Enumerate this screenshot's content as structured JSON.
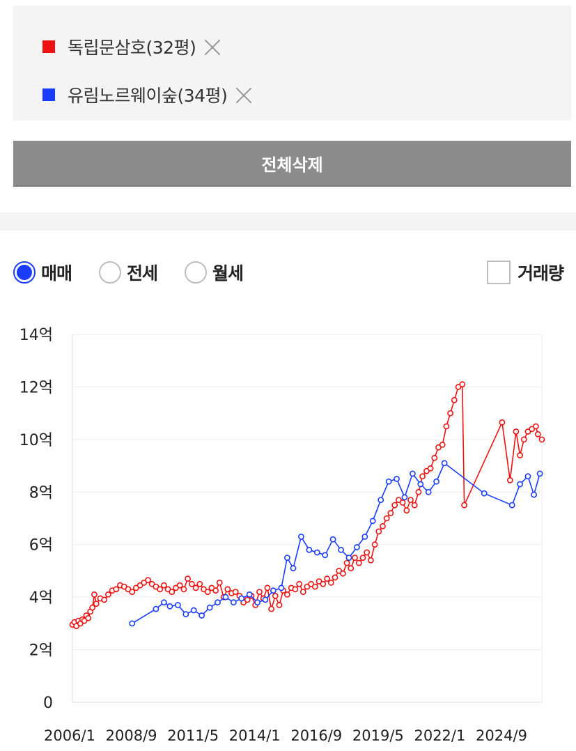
{
  "compare": {
    "items": [
      {
        "label": "독립문삼호(32평)",
        "color": "#ee1111"
      },
      {
        "label": "유림노르웨이숲(34평)",
        "color": "#1a3cff"
      }
    ],
    "delete_all_label": "전체삭제"
  },
  "options": {
    "radios": [
      {
        "label": "매매",
        "checked": true
      },
      {
        "label": "전세",
        "checked": false
      },
      {
        "label": "월세",
        "checked": false
      }
    ],
    "volume_checkbox": {
      "label": "거래량",
      "checked": false
    }
  },
  "chart_data": {
    "type": "line",
    "title": "",
    "xlabel": "",
    "ylabel": "",
    "x_ticks": [
      "2006/1",
      "2008/9",
      "2011/5",
      "2014/1",
      "2016/9",
      "2019/5",
      "2022/1",
      "2024/9"
    ],
    "y_ticks": [
      "0",
      "2억",
      "4억",
      "6억",
      "8억",
      "10억",
      "12억",
      "14억"
    ],
    "xlim": [
      "2006-01",
      "2025-09"
    ],
    "ylim": [
      0,
      14
    ],
    "y_unit": "억",
    "grid": "horizontal",
    "series": [
      {
        "name": "독립문삼호(32평)",
        "color": "#ee1111",
        "points": [
          [
            "2006-01",
            2.95
          ],
          [
            "2006-02",
            3.05
          ],
          [
            "2006-03",
            2.9
          ],
          [
            "2006-04",
            3.1
          ],
          [
            "2006-05",
            3.0
          ],
          [
            "2006-06",
            3.15
          ],
          [
            "2006-07",
            3.1
          ],
          [
            "2006-08",
            3.3
          ],
          [
            "2006-09",
            3.2
          ],
          [
            "2006-10",
            3.45
          ],
          [
            "2006-11",
            3.6
          ],
          [
            "2006-12",
            4.1
          ],
          [
            "2007-01",
            3.75
          ],
          [
            "2007-03",
            3.95
          ],
          [
            "2007-05",
            3.9
          ],
          [
            "2007-07",
            4.1
          ],
          [
            "2007-09",
            4.25
          ],
          [
            "2007-11",
            4.3
          ],
          [
            "2008-01",
            4.45
          ],
          [
            "2008-03",
            4.4
          ],
          [
            "2008-05",
            4.3
          ],
          [
            "2008-07",
            4.2
          ],
          [
            "2008-09",
            4.35
          ],
          [
            "2008-11",
            4.45
          ],
          [
            "2009-01",
            4.55
          ],
          [
            "2009-03",
            4.65
          ],
          [
            "2009-05",
            4.5
          ],
          [
            "2009-07",
            4.4
          ],
          [
            "2009-09",
            4.3
          ],
          [
            "2009-11",
            4.45
          ],
          [
            "2010-01",
            4.3
          ],
          [
            "2010-03",
            4.2
          ],
          [
            "2010-05",
            4.35
          ],
          [
            "2010-07",
            4.45
          ],
          [
            "2010-09",
            4.3
          ],
          [
            "2010-11",
            4.7
          ],
          [
            "2011-01",
            4.5
          ],
          [
            "2011-03",
            4.35
          ],
          [
            "2011-05",
            4.5
          ],
          [
            "2011-07",
            4.3
          ],
          [
            "2011-09",
            4.2
          ],
          [
            "2011-11",
            4.35
          ],
          [
            "2012-01",
            4.25
          ],
          [
            "2012-03",
            4.55
          ],
          [
            "2012-05",
            4.0
          ],
          [
            "2012-07",
            4.3
          ],
          [
            "2012-09",
            4.15
          ],
          [
            "2012-11",
            4.2
          ],
          [
            "2013-01",
            4.05
          ],
          [
            "2013-03",
            3.8
          ],
          [
            "2013-05",
            3.9
          ],
          [
            "2013-07",
            4.05
          ],
          [
            "2013-09",
            3.7
          ],
          [
            "2013-11",
            4.2
          ],
          [
            "2014-01",
            3.95
          ],
          [
            "2014-03",
            4.35
          ],
          [
            "2014-05",
            3.55
          ],
          [
            "2014-07",
            4.05
          ],
          [
            "2014-09",
            3.7
          ],
          [
            "2014-11",
            4.25
          ],
          [
            "2015-01",
            4.1
          ],
          [
            "2015-03",
            4.35
          ],
          [
            "2015-05",
            4.3
          ],
          [
            "2015-07",
            4.5
          ],
          [
            "2015-09",
            4.2
          ],
          [
            "2015-11",
            4.4
          ],
          [
            "2016-01",
            4.5
          ],
          [
            "2016-03",
            4.4
          ],
          [
            "2016-05",
            4.6
          ],
          [
            "2016-07",
            4.5
          ],
          [
            "2016-09",
            4.7
          ],
          [
            "2016-11",
            4.55
          ],
          [
            "2017-01",
            4.75
          ],
          [
            "2017-03",
            5.0
          ],
          [
            "2017-05",
            4.9
          ],
          [
            "2017-07",
            5.3
          ],
          [
            "2017-09",
            5.1
          ],
          [
            "2017-11",
            5.5
          ],
          [
            "2018-01",
            5.3
          ],
          [
            "2018-03",
            5.5
          ],
          [
            "2018-05",
            5.7
          ],
          [
            "2018-07",
            5.4
          ],
          [
            "2018-09",
            6.0
          ],
          [
            "2018-11",
            6.5
          ],
          [
            "2019-01",
            6.7
          ],
          [
            "2019-03",
            7.0
          ],
          [
            "2019-05",
            7.2
          ],
          [
            "2019-07",
            7.5
          ],
          [
            "2019-09",
            7.7
          ],
          [
            "2019-11",
            7.6
          ],
          [
            "2020-01",
            7.3
          ],
          [
            "2020-03",
            7.7
          ],
          [
            "2020-05",
            7.5
          ],
          [
            "2020-07",
            8.0
          ],
          [
            "2020-09",
            8.6
          ],
          [
            "2020-11",
            8.8
          ],
          [
            "2021-01",
            8.9
          ],
          [
            "2021-03",
            9.3
          ],
          [
            "2021-05",
            9.7
          ],
          [
            "2021-07",
            9.8
          ],
          [
            "2021-09",
            10.5
          ],
          [
            "2021-11",
            11.0
          ],
          [
            "2022-01",
            11.5
          ],
          [
            "2022-03",
            12.0
          ],
          [
            "2022-05",
            12.1
          ],
          [
            "2022-06",
            7.5
          ],
          [
            "2024-01",
            10.65
          ],
          [
            "2024-05",
            8.45
          ],
          [
            "2024-08",
            10.3
          ],
          [
            "2024-10",
            9.4
          ],
          [
            "2024-12",
            10.0
          ],
          [
            "2025-02",
            10.3
          ],
          [
            "2025-04",
            10.4
          ],
          [
            "2025-06",
            10.5
          ],
          [
            "2025-07",
            10.2
          ],
          [
            "2025-09",
            10.0
          ]
        ]
      },
      {
        "name": "유림노르웨이숲(34평)",
        "color": "#1a3cff",
        "points": [
          [
            "2008-07",
            3.0
          ],
          [
            "2009-07",
            3.55
          ],
          [
            "2009-11",
            3.8
          ],
          [
            "2010-02",
            3.65
          ],
          [
            "2010-06",
            3.7
          ],
          [
            "2010-10",
            3.35
          ],
          [
            "2011-02",
            3.5
          ],
          [
            "2011-06",
            3.3
          ],
          [
            "2011-10",
            3.6
          ],
          [
            "2012-02",
            3.8
          ],
          [
            "2012-06",
            4.0
          ],
          [
            "2012-10",
            3.8
          ],
          [
            "2013-02",
            3.95
          ],
          [
            "2013-06",
            4.1
          ],
          [
            "2013-10",
            3.8
          ],
          [
            "2014-02",
            3.9
          ],
          [
            "2014-06",
            4.25
          ],
          [
            "2014-10",
            4.35
          ],
          [
            "2015-01",
            5.5
          ],
          [
            "2015-04",
            5.1
          ],
          [
            "2015-08",
            6.3
          ],
          [
            "2015-12",
            5.8
          ],
          [
            "2016-04",
            5.7
          ],
          [
            "2016-08",
            5.6
          ],
          [
            "2016-12",
            6.2
          ],
          [
            "2017-04",
            5.8
          ],
          [
            "2017-08",
            5.5
          ],
          [
            "2017-12",
            5.9
          ],
          [
            "2018-04",
            6.3
          ],
          [
            "2018-08",
            6.9
          ],
          [
            "2018-12",
            7.7
          ],
          [
            "2019-04",
            8.4
          ],
          [
            "2019-08",
            8.5
          ],
          [
            "2019-12",
            7.8
          ],
          [
            "2020-04",
            8.7
          ],
          [
            "2020-08",
            8.3
          ],
          [
            "2020-12",
            8.0
          ],
          [
            "2021-04",
            8.4
          ],
          [
            "2021-08",
            9.1
          ],
          [
            "2023-04",
            7.95
          ],
          [
            "2024-06",
            7.5
          ],
          [
            "2024-10",
            8.3
          ],
          [
            "2025-02",
            8.6
          ],
          [
            "2025-05",
            7.9
          ],
          [
            "2025-08",
            8.7
          ]
        ]
      }
    ]
  }
}
